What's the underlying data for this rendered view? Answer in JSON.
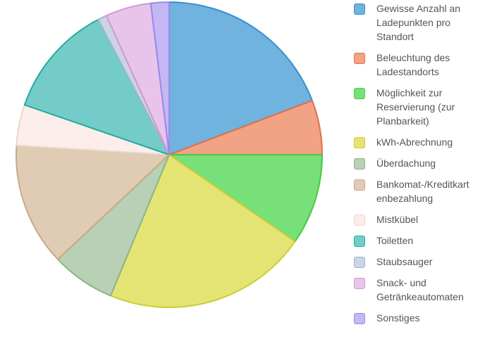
{
  "chart_data": {
    "type": "pie",
    "legend_position": "right",
    "slices": [
      {
        "label": "Gewisse Anzahl an Ladepunkten pro Standort",
        "value": 20.0,
        "color": "#6fb3de",
        "border": "#3a8fd0"
      },
      {
        "label": "Beleuchtung des Ladestandorts",
        "value": 6.0,
        "color": "#f2a285",
        "border": "#e07048"
      },
      {
        "label": "Möglichkeit zur Reservierung (zur Planbarkeit)",
        "value": 10.0,
        "color": "#78e078",
        "border": "#44c844"
      },
      {
        "label": "kWh-Abrechnung",
        "value": 22.5,
        "color": "#e4e474",
        "border": "#cccc38"
      },
      {
        "label": "Überdachung",
        "value": 7.0,
        "color": "#b8d0b4",
        "border": "#8cb488"
      },
      {
        "label": "Bankomat-/Kreditkartenbezahlung",
        "value": 13.5,
        "color": "#e0ccb4",
        "border": "#caa886"
      },
      {
        "label": "Mistkübel",
        "value": 4.5,
        "color": "#fbeeea",
        "border": "#ecd6cc"
      },
      {
        "label": "Toiletten",
        "value": 12.5,
        "color": "#74ccc8",
        "border": "#24aaa0"
      },
      {
        "label": "Staubsauger",
        "value": 1.0,
        "color": "#cad4e2",
        "border": "#a4b4cc"
      },
      {
        "label": "Snack- und Getränkeautomaten",
        "value": 5.0,
        "color": "#e8c4ea",
        "border": "#d098d4"
      },
      {
        "label": "Sonstiges",
        "value": 2.0,
        "color": "#c4b8f4",
        "border": "#9c88ec"
      }
    ]
  },
  "legend": {
    "items": [
      {
        "lines": [
          "Gewisse Anzahl an",
          "Ladepunkten pro",
          "Standort"
        ]
      },
      {
        "lines": [
          "Beleuchtung des",
          "Ladestandorts"
        ]
      },
      {
        "lines": [
          "Möglichkeit zur",
          "Reservierung (zur",
          "Planbarkeit)"
        ]
      },
      {
        "lines": [
          "kWh-Abrechnung"
        ]
      },
      {
        "lines": [
          "Überdachung"
        ]
      },
      {
        "lines": [
          "Bankomat-/Kreditkart",
          "enbezahlung"
        ]
      },
      {
        "lines": [
          "Mistkübel"
        ]
      },
      {
        "lines": [
          "Toiletten"
        ]
      },
      {
        "lines": [
          "Staubsauger"
        ]
      },
      {
        "lines": [
          "Snack- und",
          "Getränkeautomaten"
        ]
      },
      {
        "lines": [
          "Sonstiges"
        ]
      }
    ]
  }
}
